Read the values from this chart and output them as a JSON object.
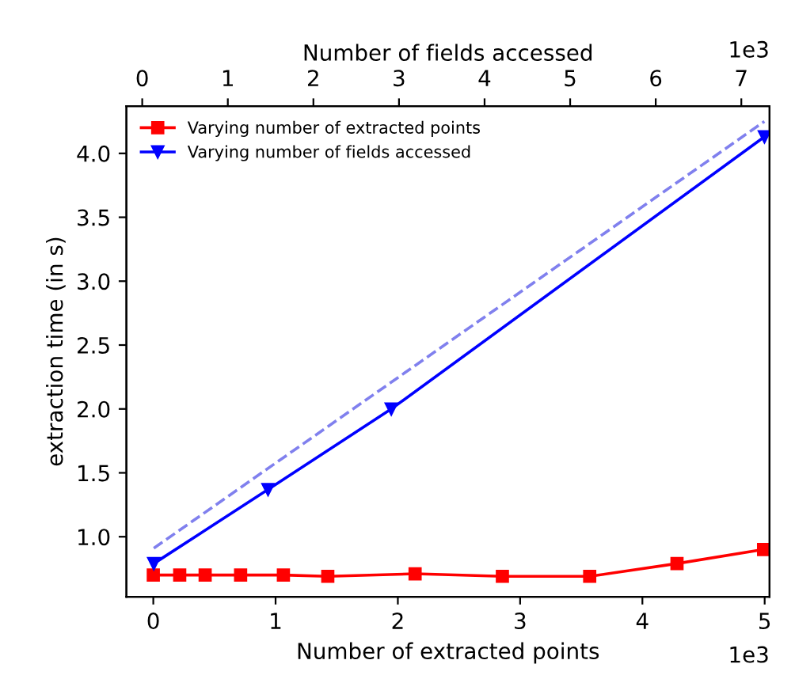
{
  "chart_data": {
    "type": "line",
    "xlabel": "Number of extracted points",
    "x2label": "Number of fields accessed",
    "ylabel": "extraction time (in s)",
    "xlim": [
      -0.22,
      5.04
    ],
    "xticks": [
      0,
      1,
      2,
      3,
      4,
      5
    ],
    "x2lim": [
      -0.185,
      7.33
    ],
    "x2ticks": [
      0,
      1,
      2,
      3,
      4,
      5,
      6,
      7
    ],
    "ylim": [
      0.53,
      4.37
    ],
    "yticks": [
      {
        "value": 1,
        "label": "1.0"
      },
      1.5,
      {
        "value": 2,
        "label": "2.0"
      },
      2.5,
      {
        "value": 3,
        "label": "3.0"
      },
      3.5,
      {
        "value": 4,
        "label": "4.0"
      }
    ],
    "annotations": [
      "1e3",
      "1e3"
    ],
    "legend": "top left",
    "grid": false,
    "series": [
      {
        "name": "Varying number of extracted points",
        "color": "#ff0000",
        "marker": "square",
        "line_style": "solid",
        "x": [
          0,
          0.216,
          0.424,
          0.714,
          1.064,
          1.427,
          2.141,
          2.855,
          3.569,
          4.283,
          4.991
        ],
        "values": [
          0.7,
          0.7,
          0.7,
          0.7,
          0.7,
          0.69,
          0.71,
          0.69,
          0.69,
          0.79,
          0.9
        ]
      },
      {
        "name": "Varying number of fields accessed",
        "color": "#0000ff",
        "marker": "triangle",
        "line_style": "solid",
        "axis": "x2",
        "x": [
          0.135,
          1.47,
          2.91,
          7.27
        ],
        "values": [
          0.79,
          1.37,
          2.0,
          4.13
        ]
      },
      {
        "color": "#8080ee",
        "marker": "none",
        "line_style": "dashed",
        "axis": "x2",
        "x": [
          0.135,
          7.27
        ],
        "values": [
          0.91,
          4.25
        ]
      }
    ]
  }
}
